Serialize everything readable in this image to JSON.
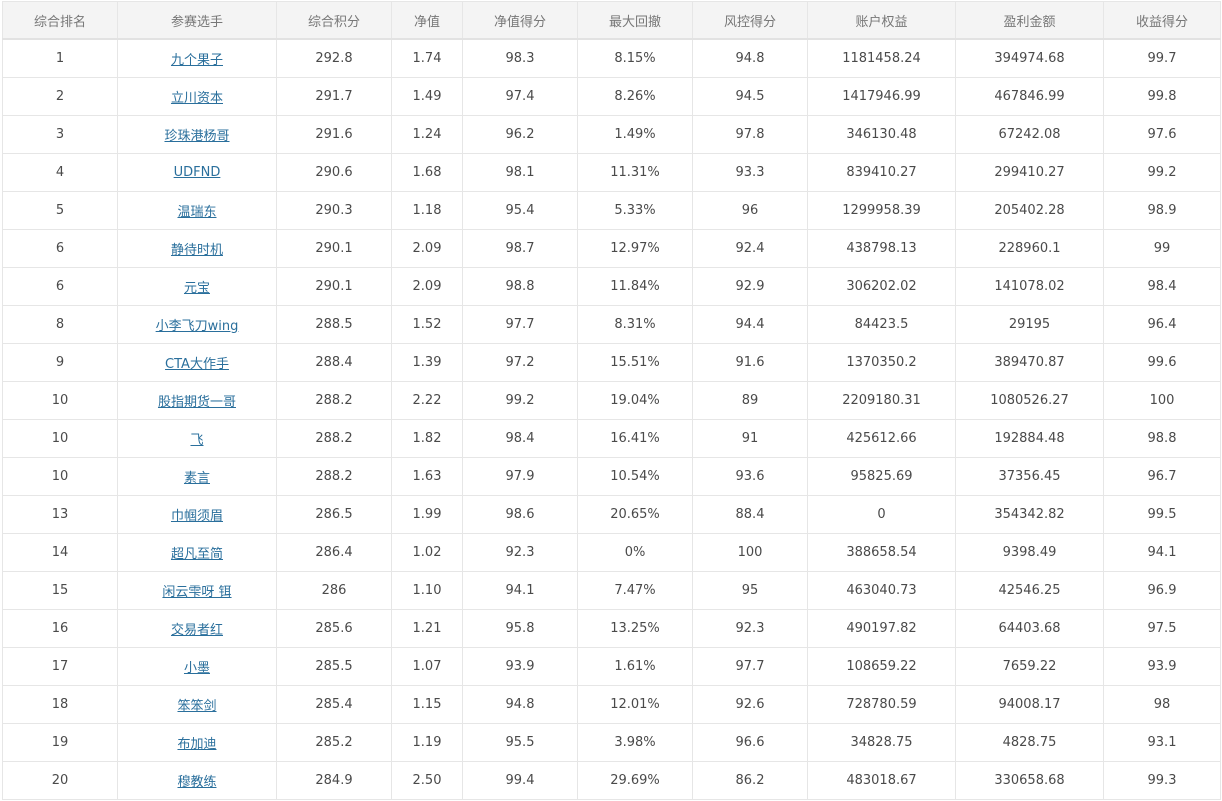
{
  "table": {
    "headers": [
      "综合排名",
      "参赛选手",
      "综合积分",
      "净值",
      "净值得分",
      "最大回撤",
      "风控得分",
      "账户权益",
      "盈利金额",
      "收益得分"
    ],
    "rows": [
      {
        "rank": "1",
        "player": "九个果子",
        "score": "292.8",
        "nav": "1.74",
        "nav_score": "98.3",
        "max_drawdown": "8.15%",
        "risk_score": "94.8",
        "equity": "1181458.24",
        "profit": "394974.68",
        "return_score": "99.7"
      },
      {
        "rank": "2",
        "player": "立川资本",
        "score": "291.7",
        "nav": "1.49",
        "nav_score": "97.4",
        "max_drawdown": "8.26%",
        "risk_score": "94.5",
        "equity": "1417946.99",
        "profit": "467846.99",
        "return_score": "99.8"
      },
      {
        "rank": "3",
        "player": "珍珠港杨哥",
        "score": "291.6",
        "nav": "1.24",
        "nav_score": "96.2",
        "max_drawdown": "1.49%",
        "risk_score": "97.8",
        "equity": "346130.48",
        "profit": "67242.08",
        "return_score": "97.6"
      },
      {
        "rank": "4",
        "player": "UDFND",
        "score": "290.6",
        "nav": "1.68",
        "nav_score": "98.1",
        "max_drawdown": "11.31%",
        "risk_score": "93.3",
        "equity": "839410.27",
        "profit": "299410.27",
        "return_score": "99.2"
      },
      {
        "rank": "5",
        "player": "温瑞东",
        "score": "290.3",
        "nav": "1.18",
        "nav_score": "95.4",
        "max_drawdown": "5.33%",
        "risk_score": "96",
        "equity": "1299958.39",
        "profit": "205402.28",
        "return_score": "98.9"
      },
      {
        "rank": "6",
        "player": "静待时机",
        "score": "290.1",
        "nav": "2.09",
        "nav_score": "98.7",
        "max_drawdown": "12.97%",
        "risk_score": "92.4",
        "equity": "438798.13",
        "profit": "228960.1",
        "return_score": "99"
      },
      {
        "rank": "6",
        "player": "元宝",
        "score": "290.1",
        "nav": "2.09",
        "nav_score": "98.8",
        "max_drawdown": "11.84%",
        "risk_score": "92.9",
        "equity": "306202.02",
        "profit": "141078.02",
        "return_score": "98.4"
      },
      {
        "rank": "8",
        "player": "小李飞刀wing",
        "score": "288.5",
        "nav": "1.52",
        "nav_score": "97.7",
        "max_drawdown": "8.31%",
        "risk_score": "94.4",
        "equity": "84423.5",
        "profit": "29195",
        "return_score": "96.4"
      },
      {
        "rank": "9",
        "player": "CTA大作手",
        "score": "288.4",
        "nav": "1.39",
        "nav_score": "97.2",
        "max_drawdown": "15.51%",
        "risk_score": "91.6",
        "equity": "1370350.2",
        "profit": "389470.87",
        "return_score": "99.6"
      },
      {
        "rank": "10",
        "player": "股指期货一哥",
        "score": "288.2",
        "nav": "2.22",
        "nav_score": "99.2",
        "max_drawdown": "19.04%",
        "risk_score": "89",
        "equity": "2209180.31",
        "profit": "1080526.27",
        "return_score": "100"
      },
      {
        "rank": "10",
        "player": "飞",
        "score": "288.2",
        "nav": "1.82",
        "nav_score": "98.4",
        "max_drawdown": "16.41%",
        "risk_score": "91",
        "equity": "425612.66",
        "profit": "192884.48",
        "return_score": "98.8"
      },
      {
        "rank": "10",
        "player": "素言",
        "score": "288.2",
        "nav": "1.63",
        "nav_score": "97.9",
        "max_drawdown": "10.54%",
        "risk_score": "93.6",
        "equity": "95825.69",
        "profit": "37356.45",
        "return_score": "96.7"
      },
      {
        "rank": "13",
        "player": "巾帼须眉",
        "score": "286.5",
        "nav": "1.99",
        "nav_score": "98.6",
        "max_drawdown": "20.65%",
        "risk_score": "88.4",
        "equity": "0",
        "profit": "354342.82",
        "return_score": "99.5"
      },
      {
        "rank": "14",
        "player": "超凡至简",
        "score": "286.4",
        "nav": "1.02",
        "nav_score": "92.3",
        "max_drawdown": "0%",
        "risk_score": "100",
        "equity": "388658.54",
        "profit": "9398.49",
        "return_score": "94.1"
      },
      {
        "rank": "15",
        "player": "闲云雫呀 铒",
        "score": "286",
        "nav": "1.10",
        "nav_score": "94.1",
        "max_drawdown": "7.47%",
        "risk_score": "95",
        "equity": "463040.73",
        "profit": "42546.25",
        "return_score": "96.9"
      },
      {
        "rank": "16",
        "player": "交易者红",
        "score": "285.6",
        "nav": "1.21",
        "nav_score": "95.8",
        "max_drawdown": "13.25%",
        "risk_score": "92.3",
        "equity": "490197.82",
        "profit": "64403.68",
        "return_score": "97.5"
      },
      {
        "rank": "17",
        "player": "小墨",
        "score": "285.5",
        "nav": "1.07",
        "nav_score": "93.9",
        "max_drawdown": "1.61%",
        "risk_score": "97.7",
        "equity": "108659.22",
        "profit": "7659.22",
        "return_score": "93.9"
      },
      {
        "rank": "18",
        "player": "笨笨剑",
        "score": "285.4",
        "nav": "1.15",
        "nav_score": "94.8",
        "max_drawdown": "12.01%",
        "risk_score": "92.6",
        "equity": "728780.59",
        "profit": "94008.17",
        "return_score": "98"
      },
      {
        "rank": "19",
        "player": "布加迪",
        "score": "285.2",
        "nav": "1.19",
        "nav_score": "95.5",
        "max_drawdown": "3.98%",
        "risk_score": "96.6",
        "equity": "34828.75",
        "profit": "4828.75",
        "return_score": "93.1"
      },
      {
        "rank": "20",
        "player": "穆教练",
        "score": "284.9",
        "nav": "2.50",
        "nav_score": "99.4",
        "max_drawdown": "29.69%",
        "risk_score": "86.2",
        "equity": "483018.67",
        "profit": "330658.68",
        "return_score": "99.3"
      }
    ]
  },
  "colors": {
    "link": "#2a6f9c",
    "header_bg": "#f4f4f4",
    "border": "#e6e6e6"
  }
}
